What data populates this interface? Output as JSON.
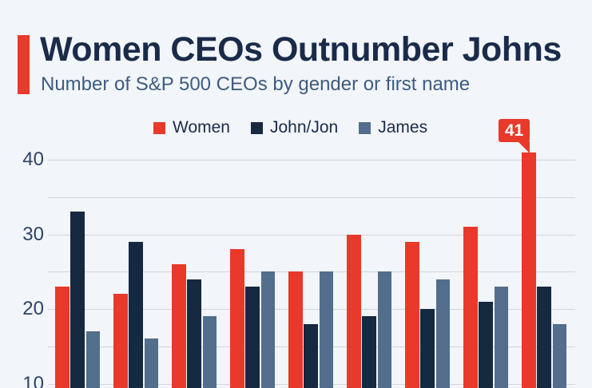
{
  "page": {
    "background_color": "#f2f5f9"
  },
  "header": {
    "title": "Women CEOs Outnumber Johns",
    "subtitle": "Number of S&P 500 CEOs by gender or first name",
    "accent_color": "#e8392b",
    "title_color": "#1a2b4a",
    "subtitle_color": "#3d5c80"
  },
  "legend": {
    "items": [
      {
        "label": "Women",
        "color": "#e8392b"
      },
      {
        "label": "John/Jon",
        "color": "#152940"
      },
      {
        "label": "James",
        "color": "#536d8c"
      }
    ]
  },
  "annotation": {
    "label": "41",
    "box_color": "#e8392b",
    "text_color": "#ffffff",
    "points_to": {
      "series": "Women",
      "group_index": 8
    }
  },
  "chart_data": {
    "type": "bar",
    "title": "Women CEOs Outnumber Johns",
    "subtitle": "Number of S&P 500 CEOs by gender or first name",
    "categories": [
      "",
      "",
      "",
      "",
      "",
      "",
      "",
      "",
      ""
    ],
    "series": [
      {
        "name": "Women",
        "color": "#e8392b",
        "values": [
          23,
          22,
          26,
          28,
          25,
          30,
          29,
          31,
          41
        ]
      },
      {
        "name": "John/Jon",
        "color": "#152940",
        "values": [
          33,
          29,
          24,
          23,
          18,
          19,
          20,
          21,
          23
        ]
      },
      {
        "name": "James",
        "color": "#536d8c",
        "values": [
          17,
          16,
          19,
          25,
          25,
          25,
          24,
          23,
          18
        ]
      }
    ],
    "yticks_labeled": [
      40,
      30,
      20,
      10
    ],
    "gridline_step": 5,
    "gridline_min": 10,
    "gridline_max": 40,
    "grid_on": true,
    "legend_position": "top",
    "ylim_visible": [
      10,
      43
    ],
    "ytick_color": "#2e4367",
    "gridline_color": "#d2d7de"
  }
}
